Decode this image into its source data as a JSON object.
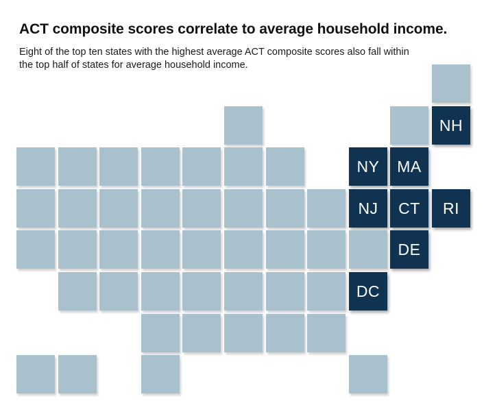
{
  "header": {
    "title": "ACT composite scores correlate to average household income.",
    "subtitle": "Eight of the top ten states with the highest average ACT composite scores also fall within the top half of states for average household income."
  },
  "colors": {
    "highlight": "#0f3350",
    "default": "#a8c1cc",
    "highlight_text": "#ffffff"
  },
  "tile_map": {
    "tiles": [
      {
        "col": 10,
        "row": 0,
        "label": "",
        "highlight": false
      },
      {
        "col": 5,
        "row": 1,
        "label": "",
        "highlight": false
      },
      {
        "col": 9,
        "row": 1,
        "label": "",
        "highlight": false
      },
      {
        "col": 10,
        "row": 1,
        "label": "NH",
        "highlight": true
      },
      {
        "col": 0,
        "row": 2,
        "label": "",
        "highlight": false
      },
      {
        "col": 1,
        "row": 2,
        "label": "",
        "highlight": false
      },
      {
        "col": 2,
        "row": 2,
        "label": "",
        "highlight": false
      },
      {
        "col": 3,
        "row": 2,
        "label": "",
        "highlight": false
      },
      {
        "col": 4,
        "row": 2,
        "label": "",
        "highlight": false
      },
      {
        "col": 5,
        "row": 2,
        "label": "",
        "highlight": false
      },
      {
        "col": 6,
        "row": 2,
        "label": "",
        "highlight": false
      },
      {
        "col": 8,
        "row": 2,
        "label": "NY",
        "highlight": true
      },
      {
        "col": 9,
        "row": 2,
        "label": "MA",
        "highlight": true
      },
      {
        "col": 0,
        "row": 3,
        "label": "",
        "highlight": false
      },
      {
        "col": 1,
        "row": 3,
        "label": "",
        "highlight": false
      },
      {
        "col": 2,
        "row": 3,
        "label": "",
        "highlight": false
      },
      {
        "col": 3,
        "row": 3,
        "label": "",
        "highlight": false
      },
      {
        "col": 4,
        "row": 3,
        "label": "",
        "highlight": false
      },
      {
        "col": 5,
        "row": 3,
        "label": "",
        "highlight": false
      },
      {
        "col": 6,
        "row": 3,
        "label": "",
        "highlight": false
      },
      {
        "col": 7,
        "row": 3,
        "label": "",
        "highlight": false
      },
      {
        "col": 8,
        "row": 3,
        "label": "NJ",
        "highlight": true
      },
      {
        "col": 9,
        "row": 3,
        "label": "CT",
        "highlight": true
      },
      {
        "col": 10,
        "row": 3,
        "label": "RI",
        "highlight": true
      },
      {
        "col": 0,
        "row": 4,
        "label": "",
        "highlight": false
      },
      {
        "col": 1,
        "row": 4,
        "label": "",
        "highlight": false
      },
      {
        "col": 2,
        "row": 4,
        "label": "",
        "highlight": false
      },
      {
        "col": 3,
        "row": 4,
        "label": "",
        "highlight": false
      },
      {
        "col": 4,
        "row": 4,
        "label": "",
        "highlight": false
      },
      {
        "col": 5,
        "row": 4,
        "label": "",
        "highlight": false
      },
      {
        "col": 6,
        "row": 4,
        "label": "",
        "highlight": false
      },
      {
        "col": 7,
        "row": 4,
        "label": "",
        "highlight": false
      },
      {
        "col": 8,
        "row": 4,
        "label": "",
        "highlight": false
      },
      {
        "col": 9,
        "row": 4,
        "label": "DE",
        "highlight": true
      },
      {
        "col": 1,
        "row": 5,
        "label": "",
        "highlight": false
      },
      {
        "col": 2,
        "row": 5,
        "label": "",
        "highlight": false
      },
      {
        "col": 3,
        "row": 5,
        "label": "",
        "highlight": false
      },
      {
        "col": 4,
        "row": 5,
        "label": "",
        "highlight": false
      },
      {
        "col": 5,
        "row": 5,
        "label": "",
        "highlight": false
      },
      {
        "col": 6,
        "row": 5,
        "label": "",
        "highlight": false
      },
      {
        "col": 7,
        "row": 5,
        "label": "",
        "highlight": false
      },
      {
        "col": 8,
        "row": 5,
        "label": "DC",
        "highlight": true
      },
      {
        "col": 3,
        "row": 6,
        "label": "",
        "highlight": false
      },
      {
        "col": 4,
        "row": 6,
        "label": "",
        "highlight": false
      },
      {
        "col": 5,
        "row": 6,
        "label": "",
        "highlight": false
      },
      {
        "col": 6,
        "row": 6,
        "label": "",
        "highlight": false
      },
      {
        "col": 7,
        "row": 6,
        "label": "",
        "highlight": false
      },
      {
        "col": 0,
        "row": 7,
        "label": "",
        "highlight": false
      },
      {
        "col": 1,
        "row": 7,
        "label": "",
        "highlight": false
      },
      {
        "col": 3,
        "row": 7,
        "label": "",
        "highlight": false
      },
      {
        "col": 8,
        "row": 7,
        "label": "",
        "highlight": false
      }
    ]
  }
}
